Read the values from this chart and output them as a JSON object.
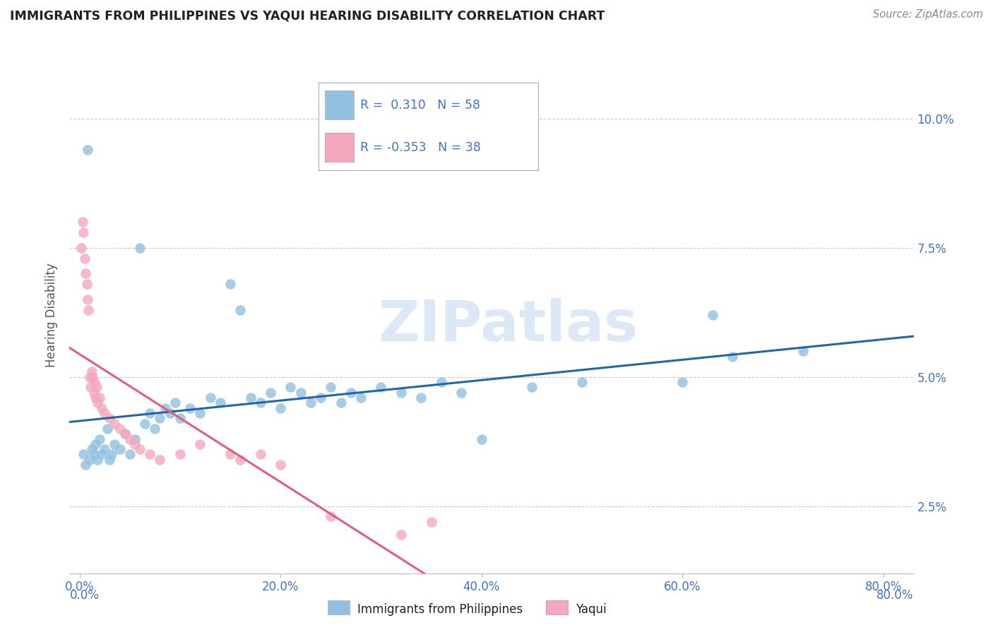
{
  "title": "IMMIGRANTS FROM PHILIPPINES VS YAQUI HEARING DISABILITY CORRELATION CHART",
  "source": "Source: ZipAtlas.com",
  "xlabel_blue": "Immigrants from Philippines",
  "xlabel_pink": "Yaqui",
  "ylabel": "Hearing Disability",
  "xlim": [
    -1.0,
    83.0
  ],
  "ylim": [
    1.2,
    11.2
  ],
  "xticks": [
    0.0,
    20.0,
    40.0,
    60.0,
    80.0
  ],
  "yticks": [
    2.5,
    5.0,
    7.5,
    10.0
  ],
  "R_blue": 0.31,
  "N_blue": 58,
  "R_pink": -0.353,
  "N_pink": 38,
  "blue_color": "#92c0e0",
  "pink_color": "#f4a8bc",
  "blue_line_color": "#2166ac",
  "pink_line_color": "#e0607a",
  "blue_scatter": [
    [
      0.4,
      3.5
    ],
    [
      0.6,
      3.3
    ],
    [
      0.8,
      9.4
    ],
    [
      1.0,
      3.4
    ],
    [
      1.2,
      3.6
    ],
    [
      1.4,
      3.5
    ],
    [
      1.6,
      3.7
    ],
    [
      1.8,
      3.4
    ],
    [
      2.0,
      3.8
    ],
    [
      2.2,
      3.5
    ],
    [
      2.5,
      3.6
    ],
    [
      2.8,
      4.0
    ],
    [
      3.0,
      3.4
    ],
    [
      3.2,
      3.5
    ],
    [
      3.5,
      3.7
    ],
    [
      4.0,
      3.6
    ],
    [
      4.5,
      3.9
    ],
    [
      5.0,
      3.5
    ],
    [
      5.5,
      3.8
    ],
    [
      6.0,
      7.5
    ],
    [
      6.5,
      4.1
    ],
    [
      7.0,
      4.3
    ],
    [
      7.5,
      4.0
    ],
    [
      8.0,
      4.2
    ],
    [
      8.5,
      4.4
    ],
    [
      9.0,
      4.3
    ],
    [
      9.5,
      4.5
    ],
    [
      10.0,
      4.2
    ],
    [
      11.0,
      4.4
    ],
    [
      12.0,
      4.3
    ],
    [
      13.0,
      4.6
    ],
    [
      14.0,
      4.5
    ],
    [
      15.0,
      6.8
    ],
    [
      16.0,
      6.3
    ],
    [
      17.0,
      4.6
    ],
    [
      18.0,
      4.5
    ],
    [
      19.0,
      4.7
    ],
    [
      20.0,
      4.4
    ],
    [
      21.0,
      4.8
    ],
    [
      22.0,
      4.7
    ],
    [
      23.0,
      4.5
    ],
    [
      24.0,
      4.6
    ],
    [
      25.0,
      4.8
    ],
    [
      26.0,
      4.5
    ],
    [
      27.0,
      4.7
    ],
    [
      28.0,
      4.6
    ],
    [
      30.0,
      4.8
    ],
    [
      32.0,
      4.7
    ],
    [
      34.0,
      4.6
    ],
    [
      36.0,
      4.9
    ],
    [
      38.0,
      4.7
    ],
    [
      40.0,
      3.8
    ],
    [
      45.0,
      4.8
    ],
    [
      50.0,
      4.9
    ],
    [
      60.0,
      4.9
    ],
    [
      63.0,
      6.2
    ],
    [
      65.0,
      5.4
    ],
    [
      72.0,
      5.5
    ]
  ],
  "pink_scatter": [
    [
      0.2,
      7.5
    ],
    [
      0.3,
      8.0
    ],
    [
      0.4,
      7.8
    ],
    [
      0.5,
      7.3
    ],
    [
      0.6,
      7.0
    ],
    [
      0.7,
      6.8
    ],
    [
      0.8,
      6.5
    ],
    [
      0.9,
      6.3
    ],
    [
      1.0,
      5.0
    ],
    [
      1.1,
      4.8
    ],
    [
      1.2,
      5.1
    ],
    [
      1.3,
      5.0
    ],
    [
      1.4,
      4.7
    ],
    [
      1.5,
      4.9
    ],
    [
      1.6,
      4.6
    ],
    [
      1.7,
      4.8
    ],
    [
      1.8,
      4.5
    ],
    [
      2.0,
      4.6
    ],
    [
      2.2,
      4.4
    ],
    [
      2.5,
      4.3
    ],
    [
      3.0,
      4.2
    ],
    [
      3.5,
      4.1
    ],
    [
      4.0,
      4.0
    ],
    [
      4.5,
      3.9
    ],
    [
      5.0,
      3.8
    ],
    [
      5.5,
      3.7
    ],
    [
      6.0,
      3.6
    ],
    [
      7.0,
      3.5
    ],
    [
      8.0,
      3.4
    ],
    [
      10.0,
      3.5
    ],
    [
      12.0,
      3.7
    ],
    [
      15.0,
      3.5
    ],
    [
      16.0,
      3.4
    ],
    [
      18.0,
      3.5
    ],
    [
      20.0,
      3.3
    ],
    [
      25.0,
      2.3
    ],
    [
      32.0,
      1.95
    ],
    [
      35.0,
      2.2
    ]
  ],
  "pink_solid_xmax": 35.0,
  "background_color": "#ffffff",
  "grid_color": "#c8c8c8",
  "title_color": "#222222",
  "axis_color": "#4472c4",
  "watermark_text": "ZIPatlas",
  "watermark_color": "#dce8f5"
}
